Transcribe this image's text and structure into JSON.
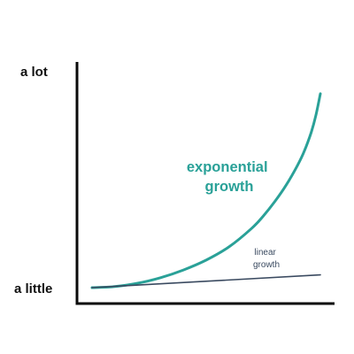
{
  "chart_data": {
    "type": "line",
    "title": "",
    "xlabel": "",
    "ylabel": "",
    "yticks": [
      "a lot",
      "a little"
    ],
    "xlim": [
      0,
      10
    ],
    "ylim": [
      0,
      100
    ],
    "grid": false,
    "legend": "none",
    "series": [
      {
        "name": "exponential growth",
        "label_lines": [
          "exponential",
          "growth"
        ],
        "color": "#2aa198",
        "x": [
          0,
          1,
          2,
          3,
          4,
          5,
          6,
          7,
          7.5,
          8,
          8.5,
          9,
          9.3,
          9.6,
          9.8,
          10
        ],
        "y": [
          0,
          0.5,
          2,
          4.5,
          8,
          12.5,
          18.5,
          27,
          32.5,
          39,
          46.5,
          55.5,
          62,
          70.5,
          78,
          88
        ]
      },
      {
        "name": "linear growth",
        "label_lines": [
          "linear",
          "growth"
        ],
        "color": "#3a4a60",
        "x": [
          0,
          10
        ],
        "y": [
          0,
          5.8
        ]
      }
    ]
  },
  "colors": {
    "axis": "#0a0a0a",
    "text": "#111111"
  }
}
